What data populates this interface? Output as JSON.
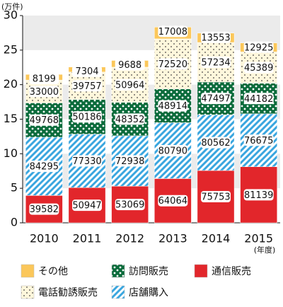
{
  "chart_data": {
    "type": "stacked_bar",
    "unit_label": "(万件)",
    "x_unit_label": "(年度)",
    "categories": [
      "2010",
      "2011",
      "2012",
      "2013",
      "2014",
      "2015"
    ],
    "ylim": [
      0,
      30
    ],
    "yticks": [
      0,
      5,
      10,
      15,
      20,
      25,
      30
    ],
    "grid_bands": true,
    "series": [
      {
        "name": "通信販売",
        "color": "#e2262b",
        "pattern": "solid",
        "values": [
          3.9582,
          5.0947,
          5.3069,
          6.4064,
          7.5753,
          8.1139
        ],
        "value_labels": [
          "39582",
          "50947",
          "53069",
          "64064",
          "75753",
          "81139"
        ]
      },
      {
        "name": "店舗購入",
        "color": "#3aa6df",
        "pattern": "hatch",
        "values": [
          8.4295,
          7.733,
          7.2938,
          8.079,
          8.0562,
          7.6675
        ],
        "value_labels": [
          "84295",
          "77330",
          "72938",
          "80790",
          "80562",
          "76675"
        ]
      },
      {
        "name": "訪問販売",
        "color": "#0b6b3b",
        "pattern": "light-dots",
        "values": [
          4.9768,
          5.0186,
          4.8352,
          4.8914,
          4.7497,
          4.4182
        ],
        "value_labels": [
          "49768",
          "50186",
          "48352",
          "48914",
          "47497",
          "44182"
        ]
      },
      {
        "name": "電話勧誘販売",
        "color": "#fff7dc",
        "pattern": "dark-dots",
        "values": [
          3.3,
          3.9757,
          5.0964,
          7.252,
          5.7234,
          4.5389
        ],
        "value_labels": [
          "33000",
          "39757",
          "50964",
          "72520",
          "57234",
          "45389"
        ]
      },
      {
        "name": "その他",
        "color": "#fbc75a",
        "pattern": "solid",
        "values": [
          0.8199,
          0.7304,
          0.9688,
          1.7008,
          1.3553,
          1.2925
        ],
        "value_labels": [
          "8199",
          "7304",
          "9688",
          "17008",
          "13553",
          "12925"
        ]
      }
    ],
    "legend_order": [
      4,
      2,
      0,
      3,
      1
    ]
  }
}
